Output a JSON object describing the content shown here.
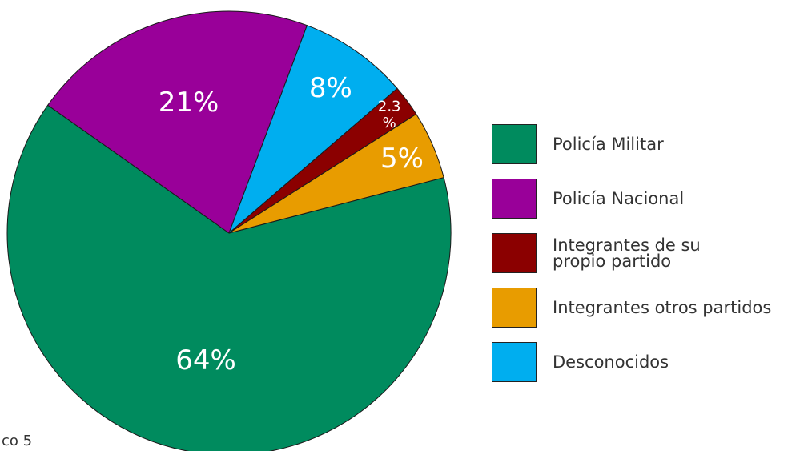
{
  "chart_data": {
    "type": "pie",
    "title": "",
    "legend_position": "right",
    "slices": [
      {
        "name": "Policía Militar",
        "value": 64,
        "label": "64%",
        "color": "#008b5e"
      },
      {
        "name": "Policía Nacional",
        "value": 21,
        "label": "21%",
        "color": "#990099"
      },
      {
        "name": "Desconocidos",
        "value": 8,
        "label": "8%",
        "color": "#00aeef"
      },
      {
        "name": "Integrantes de su propio partido",
        "value": 2.3,
        "label": "2.3\n%",
        "color": "#8b0000"
      },
      {
        "name": "Integrantes otros partidos",
        "value": 5,
        "label": "5%",
        "color": "#e89c00"
      }
    ]
  },
  "legend": {
    "items": [
      {
        "label": "Policía Militar",
        "color": "#008b5e"
      },
      {
        "label": "Policía Nacional",
        "color": "#990099"
      },
      {
        "label": "Integrantes de su\npropio partido",
        "color": "#8b0000"
      },
      {
        "label": "Integrantes otros partidos",
        "color": "#e89c00"
      },
      {
        "label": "Desconocidos",
        "color": "#00aeef"
      }
    ]
  },
  "caption": "co 5"
}
